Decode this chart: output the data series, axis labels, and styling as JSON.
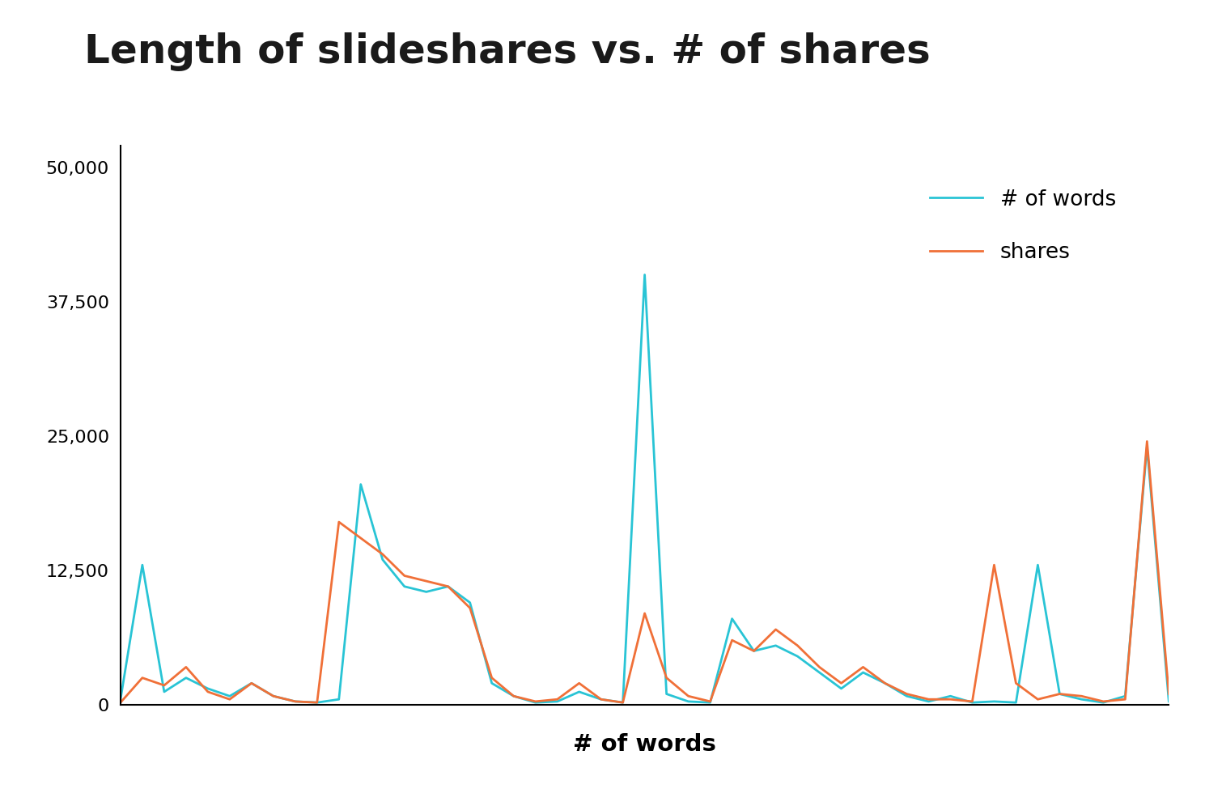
{
  "title": "Length of slideshares vs. # of shares",
  "xlabel": "# of words",
  "words_color": "#29C4D5",
  "shares_color": "#F07038",
  "legend_words": "# of words",
  "legend_shares": "shares",
  "background_color": "#ffffff",
  "ylim": [
    0,
    52000
  ],
  "yticks": [
    0,
    12500,
    25000,
    37500,
    50000
  ],
  "title_fontsize": 36,
  "xlabel_fontsize": 21,
  "tick_fontsize": 16,
  "legend_fontsize": 19,
  "words_data": [
    500,
    13000,
    1200,
    2500,
    1500,
    800,
    2000,
    800,
    300,
    200,
    500,
    20500,
    13500,
    11000,
    10500,
    11000,
    9500,
    2000,
    800,
    200,
    300,
    1200,
    500,
    200,
    40000,
    1000,
    300,
    200,
    8000,
    5000,
    5500,
    4500,
    3000,
    1500,
    3000,
    2000,
    800,
    300,
    800,
    200,
    300,
    200,
    13000,
    1000,
    500,
    200,
    800,
    24000,
    300
  ],
  "shares_data": [
    200,
    2500,
    1800,
    3500,
    1200,
    500,
    2000,
    800,
    300,
    200,
    17000,
    15500,
    14000,
    12000,
    11500,
    11000,
    9000,
    2500,
    800,
    300,
    500,
    2000,
    500,
    200,
    8500,
    2500,
    800,
    300,
    6000,
    5000,
    7000,
    5500,
    3500,
    2000,
    3500,
    2000,
    1000,
    500,
    500,
    300,
    13000,
    2000,
    500,
    1000,
    800,
    300,
    500,
    24500,
    1000
  ]
}
